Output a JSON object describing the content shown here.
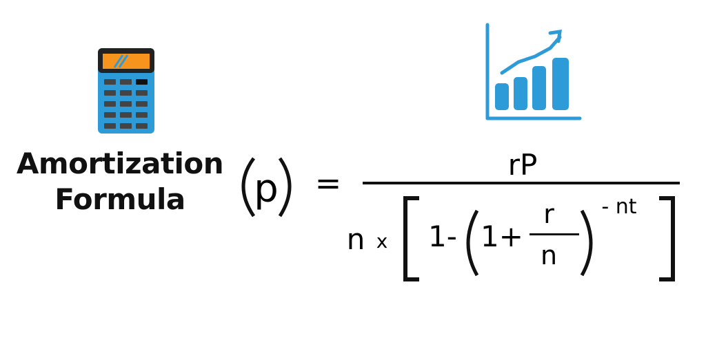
{
  "title": {
    "line1": "Amortization",
    "line2": "Formula"
  },
  "formula": {
    "symbol": "p",
    "equals": "=",
    "numerator": "rP",
    "denominator": {
      "n": "n",
      "times": "x",
      "one_minus": "1-",
      "one_plus": "1+",
      "frac_top": "r",
      "frac_bottom": "n",
      "exponent": "- nt"
    }
  },
  "icons": {
    "calculator": "calculator-icon",
    "chart": "growth-chart-icon"
  },
  "colors": {
    "icon_blue": "#2e9bd9",
    "calculator_screen": "#f7941d",
    "calculator_body": "#2e9bd9",
    "text": "#111111"
  }
}
